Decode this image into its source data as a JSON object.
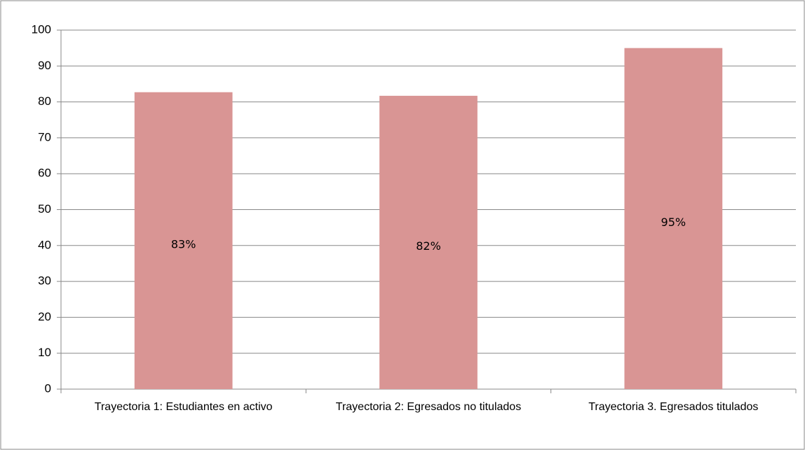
{
  "chart_data": {
    "type": "bar",
    "categories": [
      "Trayectoria 1: Estudiantes en activo",
      "Trayectoria 2: Egresados no titulados",
      "Trayectoria 3. Egresados titulados"
    ],
    "values": [
      82.7,
      81.7,
      95
    ],
    "value_labels": [
      "83%",
      "82%",
      "95%"
    ],
    "color": "#d99594",
    "ylim": [
      0,
      100
    ],
    "yticks": [
      0,
      10,
      20,
      30,
      40,
      50,
      60,
      70,
      80,
      90,
      100
    ],
    "grid": true
  }
}
